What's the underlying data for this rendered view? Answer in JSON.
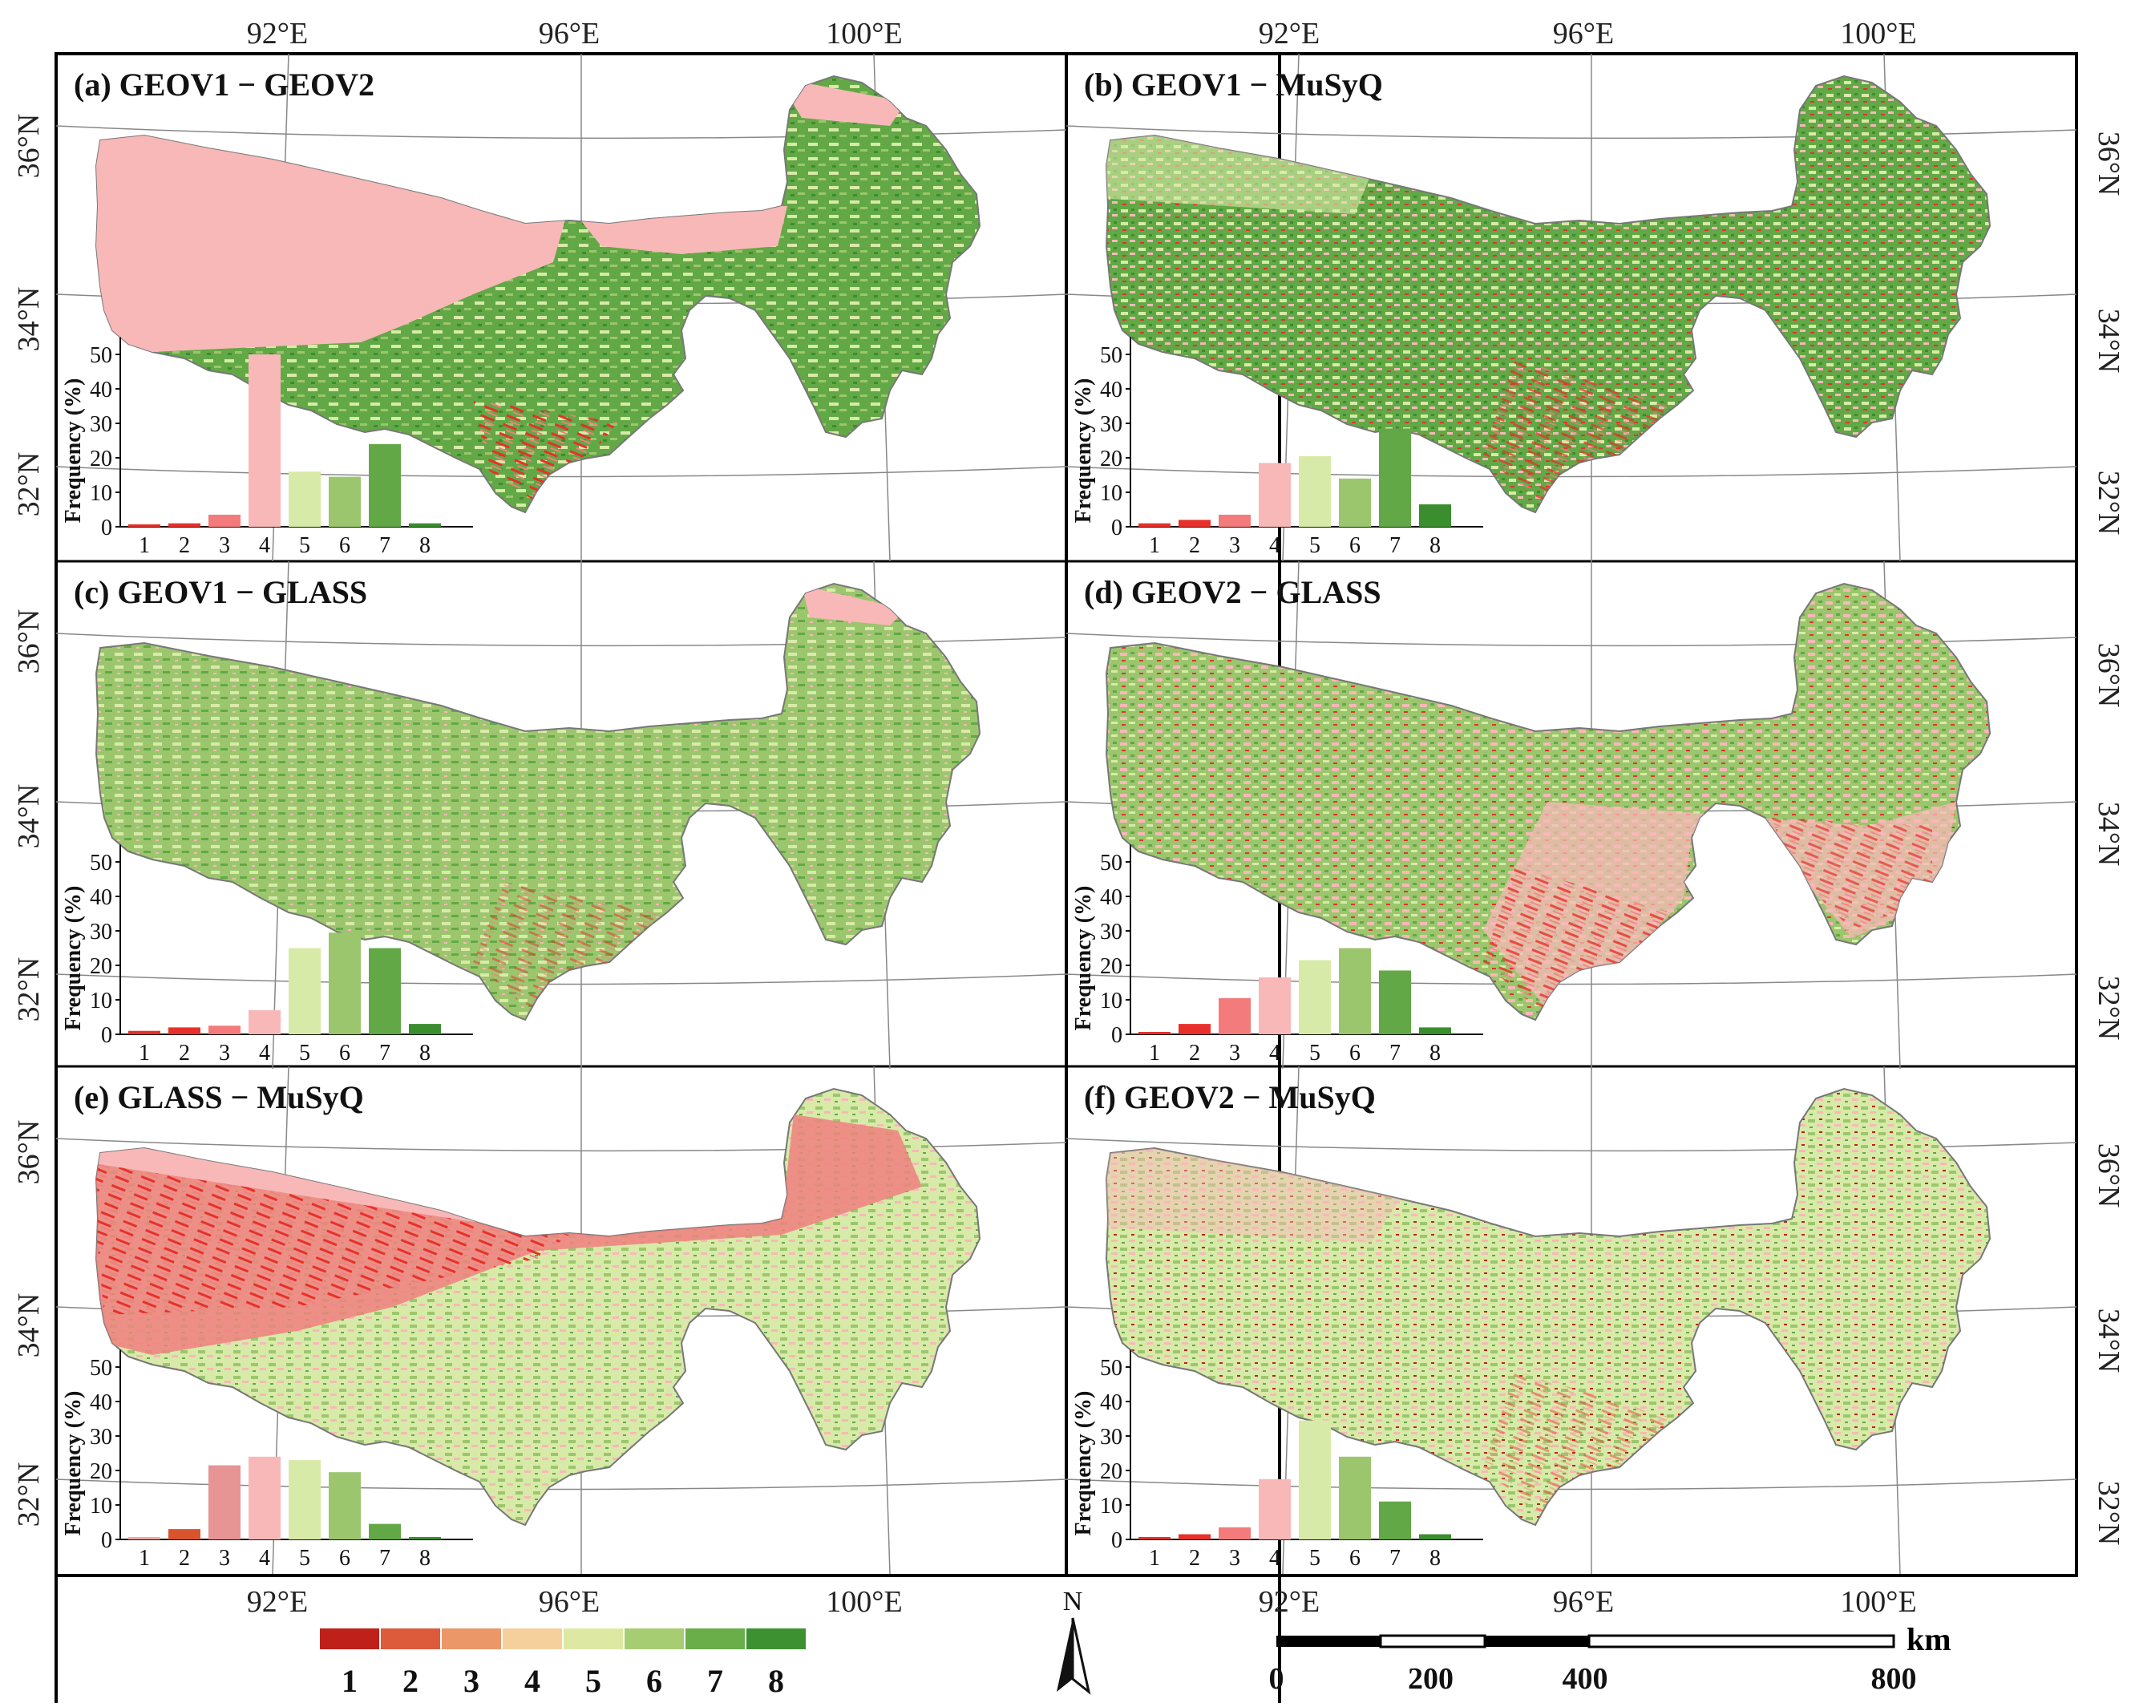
{
  "frame": {
    "lon_labels_top": [
      "92°E",
      "96°E",
      "100°E"
    ],
    "lon_labels_bottom": [
      "92°E",
      "96°E",
      "100°E"
    ],
    "lat_labels": [
      "36°N",
      "34°N",
      "32°N"
    ]
  },
  "panels": [
    {
      "id": "a",
      "title": "(a) GEOV1 − GEOV2",
      "freq": [
        0.5,
        1,
        3.5,
        50,
        16,
        14.5,
        24,
        1
      ],
      "colors": [
        "#e8302a",
        "#e8302a",
        "#f37b7b",
        "#f8b8b8",
        "#d8eaa8",
        "#9cc66e",
        "#63a846",
        "#3a8e2e"
      ]
    },
    {
      "id": "b",
      "title": "(b) GEOV1 − MuSyQ",
      "freq": [
        1,
        2,
        3.5,
        18.5,
        20.5,
        14,
        28.5,
        6.5
      ],
      "colors": [
        "#e8302a",
        "#e8302a",
        "#f37b7b",
        "#f8b8b8",
        "#d8eaa8",
        "#9cc66e",
        "#63a846",
        "#3a8e2e"
      ]
    },
    {
      "id": "c",
      "title": "(c) GEOV1 − GLASS",
      "freq": [
        1,
        2,
        2.5,
        7,
        25,
        29.5,
        25,
        3
      ],
      "colors": [
        "#e8302a",
        "#e8302a",
        "#f37b7b",
        "#f8b8b8",
        "#d8eaa8",
        "#9cc66e",
        "#63a846",
        "#3a8e2e"
      ]
    },
    {
      "id": "d",
      "title": "(d) GEOV2 − GLASS",
      "freq": [
        0.5,
        3,
        10.5,
        16.5,
        21.5,
        25,
        18.5,
        2
      ],
      "colors": [
        "#e8302a",
        "#e8302a",
        "#f37b7b",
        "#f8b8b8",
        "#d8eaa8",
        "#9cc66e",
        "#63a846",
        "#3a8e2e"
      ]
    },
    {
      "id": "e",
      "title": "(e) GLASS − MuSyQ",
      "freq": [
        0.5,
        3,
        21.5,
        24,
        23,
        19.5,
        4.5,
        0.5
      ],
      "colors": [
        "#f0a8a8",
        "#d9532c",
        "#e69494",
        "#f8b8b8",
        "#d8eaa8",
        "#9cc66e",
        "#63a846",
        "#3a8e2e"
      ]
    },
    {
      "id": "f",
      "title": "(f) GEOV2 − MuSyQ",
      "freq": [
        0.5,
        1.5,
        3.5,
        17.5,
        34.5,
        24,
        11,
        1.5
      ],
      "colors": [
        "#e8302a",
        "#e8302a",
        "#f37b7b",
        "#f8b8b8",
        "#d8eaa8",
        "#9cc66e",
        "#63a846",
        "#3a8e2e"
      ]
    }
  ],
  "histogram": {
    "ylabel": "Frequency (%)",
    "yticks": [
      0,
      10,
      20,
      30,
      40,
      50
    ],
    "categories": [
      "1",
      "2",
      "3",
      "4",
      "5",
      "6",
      "7",
      "8"
    ]
  },
  "legend": {
    "labels": [
      "1",
      "2",
      "3",
      "4",
      "5",
      "6",
      "7",
      "8"
    ],
    "colors": [
      "#c0201a",
      "#dd5a3a",
      "#eb9768",
      "#f6d09c",
      "#dde9a2",
      "#a7cd72",
      "#6aae4a",
      "#3d9130"
    ]
  },
  "north_arrow": {
    "label": "N"
  },
  "scale_bar": {
    "unit": "km",
    "labels": [
      "0",
      "200",
      "400",
      "800"
    ],
    "ticks_km": [
      0,
      200,
      400,
      800
    ]
  },
  "chart_data": [
    {
      "type": "bar",
      "title": "(a) GEOV1 − GEOV2",
      "xlabel": "",
      "ylabel": "Frequency (%)",
      "categories": [
        "1",
        "2",
        "3",
        "4",
        "5",
        "6",
        "7",
        "8"
      ],
      "values": [
        0.5,
        1,
        3.5,
        50,
        16,
        14.5,
        24,
        1
      ],
      "ylim": [
        0,
        55
      ]
    },
    {
      "type": "bar",
      "title": "(b) GEOV1 − MuSyQ",
      "xlabel": "",
      "ylabel": "Frequency (%)",
      "categories": [
        "1",
        "2",
        "3",
        "4",
        "5",
        "6",
        "7",
        "8"
      ],
      "values": [
        1,
        2,
        3.5,
        18.5,
        20.5,
        14,
        28.5,
        6.5
      ],
      "ylim": [
        0,
        55
      ]
    },
    {
      "type": "bar",
      "title": "(c) GEOV1 − GLASS",
      "xlabel": "",
      "ylabel": "Frequency (%)",
      "categories": [
        "1",
        "2",
        "3",
        "4",
        "5",
        "6",
        "7",
        "8"
      ],
      "values": [
        1,
        2,
        2.5,
        7,
        25,
        29.5,
        25,
        3
      ],
      "ylim": [
        0,
        55
      ]
    },
    {
      "type": "bar",
      "title": "(d) GEOV2 − GLASS",
      "xlabel": "",
      "ylabel": "Frequency (%)",
      "categories": [
        "1",
        "2",
        "3",
        "4",
        "5",
        "6",
        "7",
        "8"
      ],
      "values": [
        0.5,
        3,
        10.5,
        16.5,
        21.5,
        25,
        18.5,
        2
      ],
      "ylim": [
        0,
        55
      ]
    },
    {
      "type": "bar",
      "title": "(e) GLASS − MuSyQ",
      "xlabel": "",
      "ylabel": "Frequency (%)",
      "categories": [
        "1",
        "2",
        "3",
        "4",
        "5",
        "6",
        "7",
        "8"
      ],
      "values": [
        0.5,
        3,
        21.5,
        24,
        23,
        19.5,
        4.5,
        0.5
      ],
      "ylim": [
        0,
        55
      ]
    },
    {
      "type": "bar",
      "title": "(f) GEOV2 − MuSyQ",
      "xlabel": "",
      "ylabel": "Frequency (%)",
      "categories": [
        "1",
        "2",
        "3",
        "4",
        "5",
        "6",
        "7",
        "8"
      ],
      "values": [
        0.5,
        1.5,
        3.5,
        17.5,
        34.5,
        24,
        11,
        1.5
      ],
      "ylim": [
        0,
        55
      ]
    }
  ]
}
